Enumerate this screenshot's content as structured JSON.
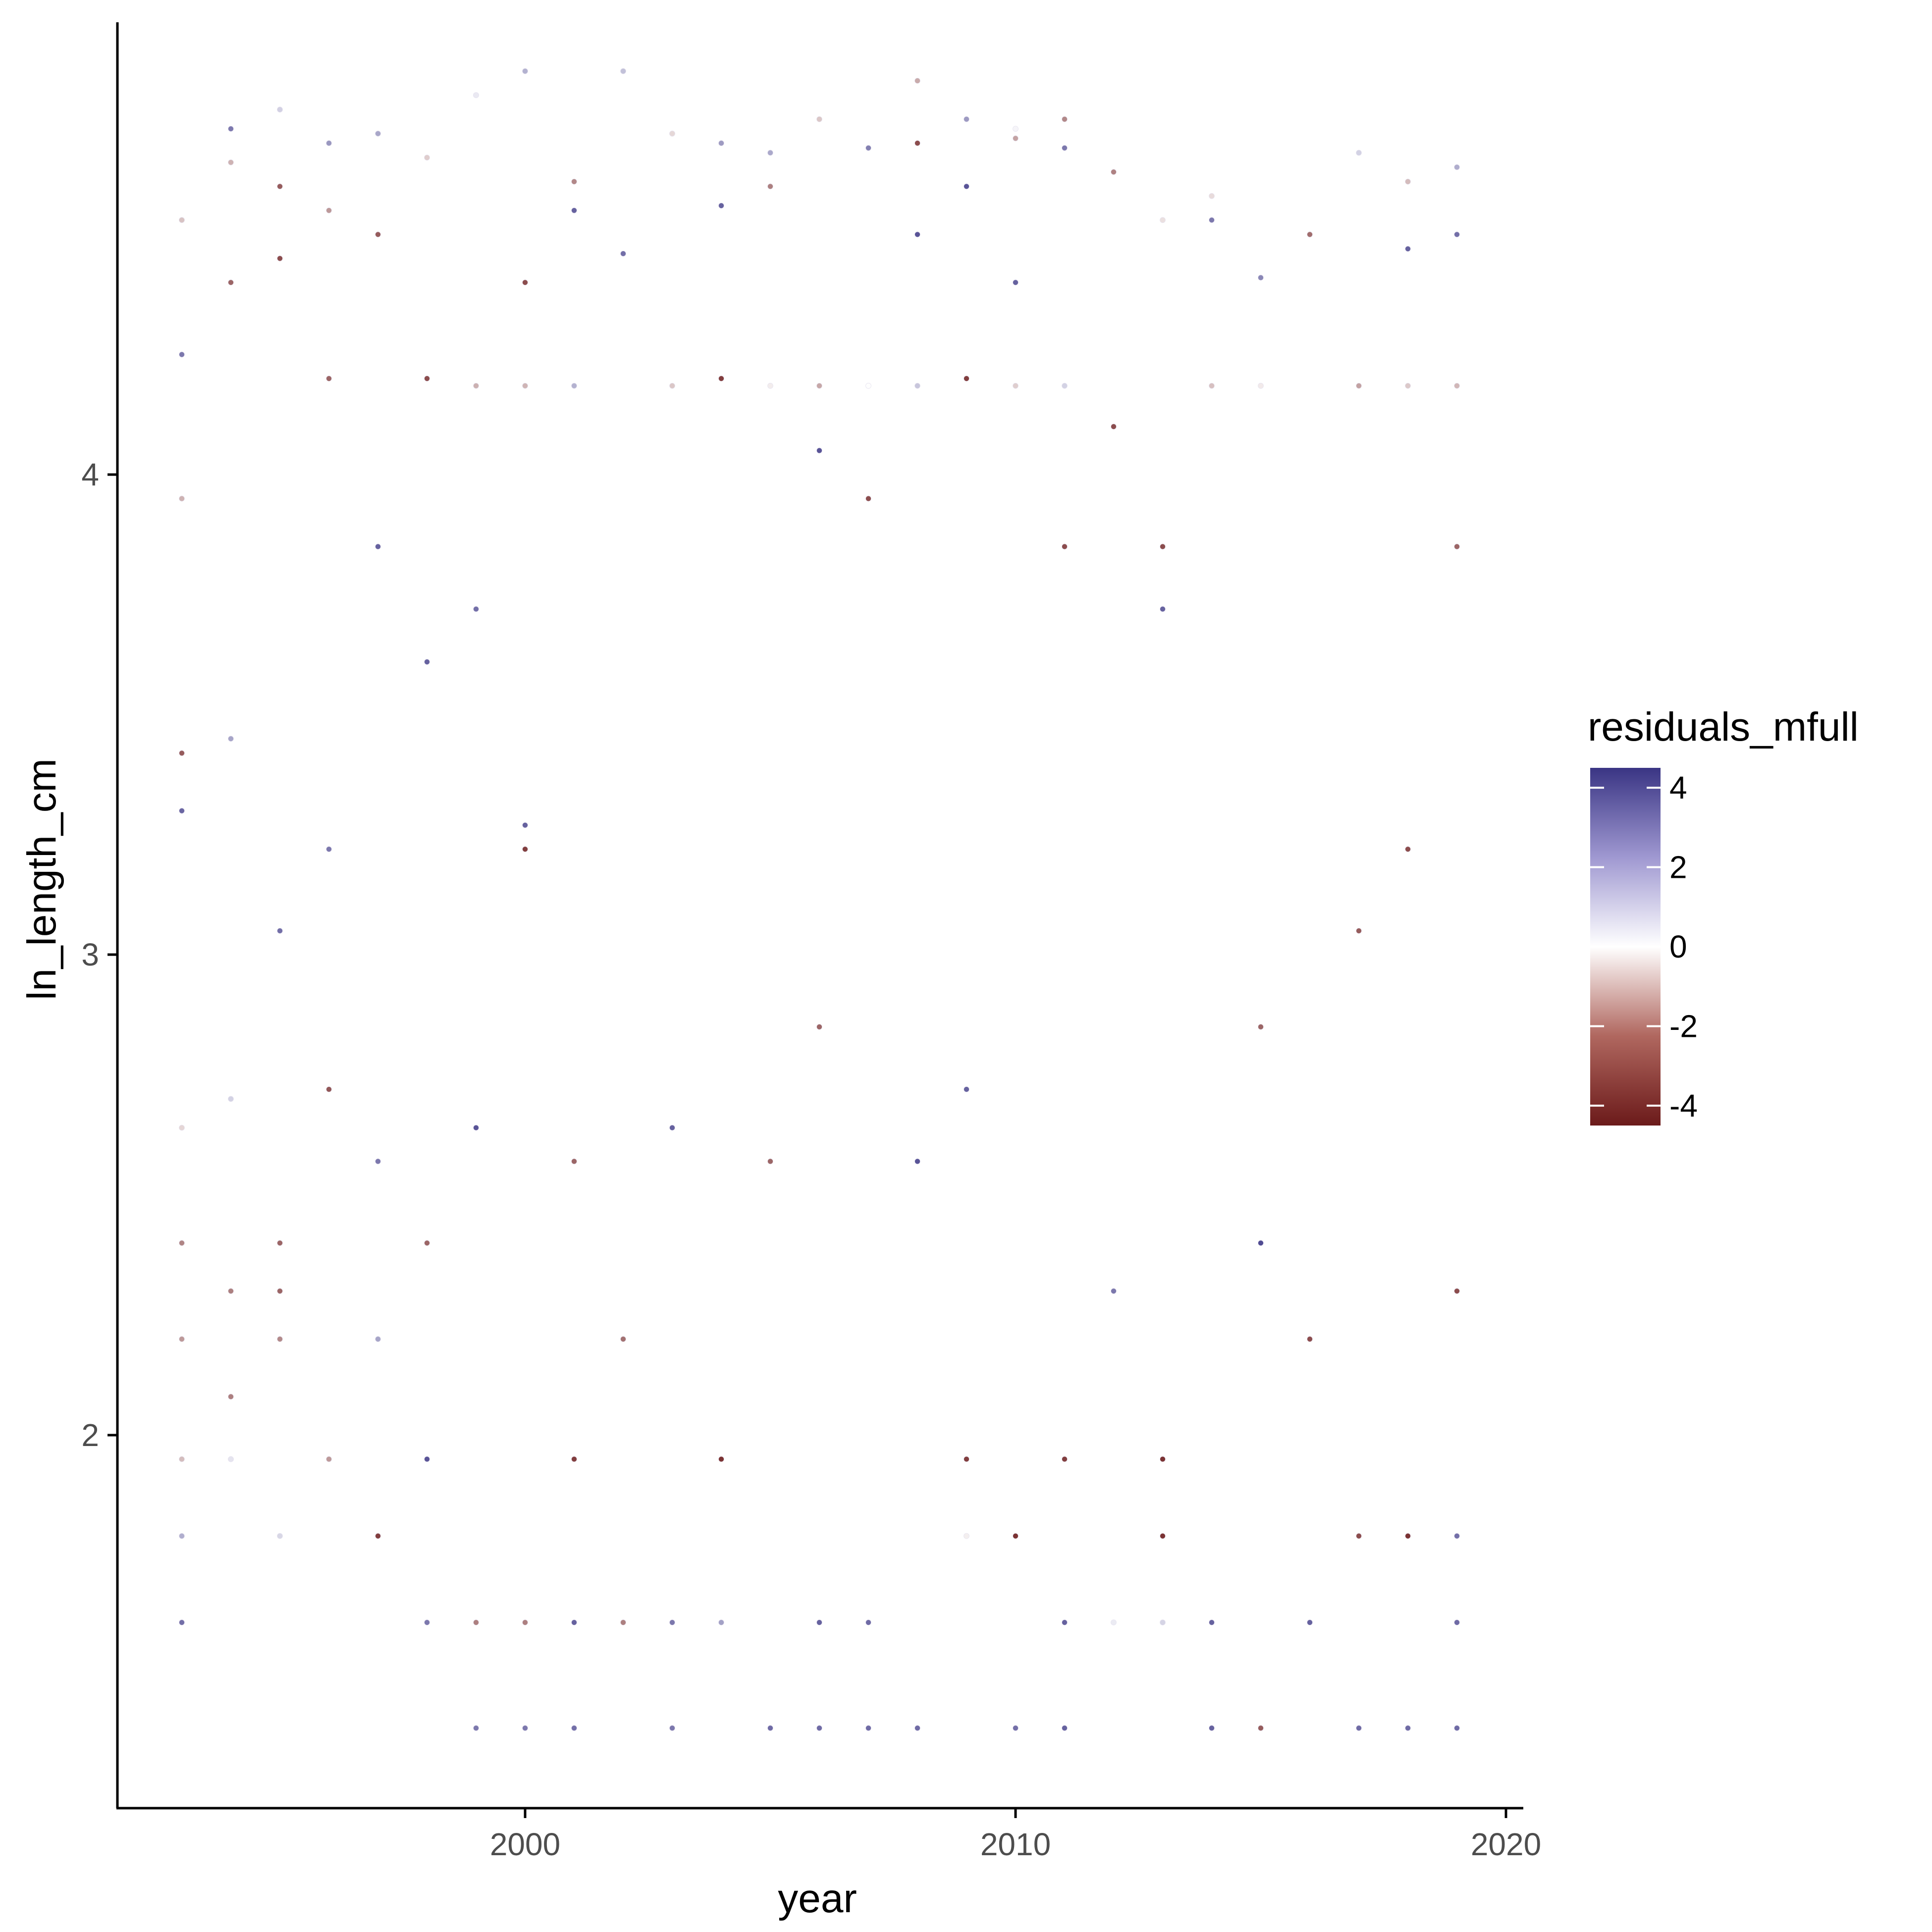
{
  "chart_data": {
    "type": "scatter",
    "title": "",
    "xlabel": "year",
    "ylabel": "ln_length_cm",
    "xlim": [
      1992.2,
      2020.3
    ],
    "ylim": [
      1.2,
      4.93
    ],
    "x_ticks": [
      2000,
      2010,
      2020
    ],
    "x_tick_labels": [
      "2000",
      "2010",
      "2020"
    ],
    "y_ticks": [
      2,
      3,
      4
    ],
    "y_tick_labels": [
      "2",
      "3",
      "4"
    ],
    "grid": false,
    "legend": {
      "title": "residuals_mfull",
      "placement": "right",
      "type": "colorbar",
      "range": [
        -4.5,
        4.5
      ],
      "breaks": [
        4,
        2,
        0,
        -2,
        -4
      ],
      "break_labels": [
        "4",
        "2",
        "0",
        "-2",
        "-4"
      ],
      "colors": {
        "low": "#6b1a1a",
        "mid": "#ffffff",
        "high": "#3a3584"
      }
    },
    "years": [
      1993,
      1994,
      1995,
      1996,
      1997,
      1998,
      1999,
      2000,
      2001,
      2002,
      2003,
      2004,
      2005,
      2006,
      2007,
      2008,
      2009,
      2010,
      2011,
      2012,
      2013,
      2014,
      2015,
      2016,
      2017,
      2018,
      2019
    ],
    "series_by_year": [
      {
        "year": 1993,
        "min": 1.61,
        "max": 4.53,
        "sample": [
          [
            1.61,
            3.2
          ],
          [
            1.79,
            1.8
          ],
          [
            1.95,
            -1.3
          ],
          [
            2.2,
            -2.0
          ],
          [
            2.4,
            -2.4
          ],
          [
            2.64,
            -0.8
          ],
          [
            3.3,
            3.4
          ],
          [
            3.42,
            -3.2
          ],
          [
            3.95,
            -1.5
          ],
          [
            4.25,
            3.0
          ],
          [
            4.53,
            -3.3
          ]
        ]
      },
      {
        "year": 1994,
        "min": 1.95,
        "max": 4.72,
        "sample": [
          [
            1.95,
            0.6
          ],
          [
            2.08,
            -2.5
          ],
          [
            2.3,
            -2.5
          ],
          [
            2.7,
            1.0
          ],
          [
            3.45,
            2.0
          ],
          [
            4.4,
            -3.0
          ],
          [
            4.65,
            -1.5
          ]
        ]
      },
      {
        "year": 1995,
        "min": 1.79,
        "max": 4.76,
        "sample": [
          [
            2.2,
            -2.3
          ],
          [
            2.3,
            -3.0
          ],
          [
            2.4,
            -3.0
          ],
          [
            3.05,
            3.2
          ],
          [
            4.45,
            -3.5
          ],
          [
            4.6,
            -3.2
          ]
        ]
      },
      {
        "year": 1996,
        "min": 1.95,
        "max": 4.69,
        "sample": [
          [
            1.95,
            -2.0
          ],
          [
            2.72,
            -3.3
          ],
          [
            3.22,
            3.0
          ],
          [
            4.2,
            -3.0
          ],
          [
            4.55,
            -2.0
          ]
        ]
      },
      {
        "year": 1997,
        "min": 1.79,
        "max": 4.71,
        "sample": [
          [
            1.79,
            -3.8
          ],
          [
            2.2,
            2.0
          ],
          [
            2.57,
            3.0
          ],
          [
            3.85,
            3.5
          ],
          [
            4.5,
            -3.2
          ],
          [
            4.71,
            -3.6
          ]
        ]
      },
      {
        "year": 1998,
        "min": 1.61,
        "max": 4.66,
        "sample": [
          [
            1.61,
            3.0
          ],
          [
            1.95,
            3.8
          ],
          [
            2.4,
            -3.0
          ],
          [
            3.61,
            3.5
          ],
          [
            4.2,
            -3.5
          ]
        ]
      },
      {
        "year": 1999,
        "min": 1.39,
        "max": 4.79,
        "sample": [
          [
            1.39,
            3.0
          ],
          [
            1.61,
            -2.5
          ],
          [
            2.64,
            3.8
          ],
          [
            3.72,
            3.2
          ],
          [
            4.79,
            -3.5
          ]
        ]
      },
      {
        "year": 2000,
        "min": 1.39,
        "max": 4.84,
        "sample": [
          [
            1.39,
            3.0
          ],
          [
            1.61,
            -2.5
          ],
          [
            3.22,
            -3.8
          ],
          [
            3.27,
            3.5
          ],
          [
            4.4,
            -3.5
          ],
          [
            4.84,
            -1.2
          ]
        ]
      },
      {
        "year": 2001,
        "min": 1.39,
        "max": 4.61,
        "sample": [
          [
            1.39,
            3.2
          ],
          [
            1.61,
            3.5
          ],
          [
            1.95,
            -3.8
          ],
          [
            2.57,
            -3.0
          ],
          [
            4.55,
            3.5
          ]
        ]
      },
      {
        "year": 2002,
        "min": 1.61,
        "max": 4.84,
        "sample": [
          [
            1.61,
            -2.5
          ],
          [
            2.2,
            -2.8
          ],
          [
            4.46,
            3.2
          ],
          [
            4.84,
            -3.0
          ]
        ]
      },
      {
        "year": 2003,
        "min": 1.39,
        "max": 4.71,
        "sample": [
          [
            1.39,
            3.0
          ],
          [
            1.61,
            3.0
          ],
          [
            2.64,
            3.5
          ],
          [
            4.71,
            -3.0
          ]
        ]
      },
      {
        "year": 2004,
        "min": 1.61,
        "max": 4.69,
        "sample": [
          [
            1.95,
            -4.0
          ],
          [
            4.2,
            -3.8
          ],
          [
            4.56,
            3.5
          ]
        ]
      },
      {
        "year": 2005,
        "min": 1.39,
        "max": 4.67,
        "sample": [
          [
            1.39,
            3.3
          ],
          [
            2.57,
            -3.0
          ],
          [
            4.6,
            -2.5
          ]
        ]
      },
      {
        "year": 2006,
        "min": 1.39,
        "max": 4.74,
        "sample": [
          [
            1.39,
            3.3
          ],
          [
            1.61,
            3.5
          ],
          [
            2.85,
            -3.0
          ],
          [
            4.05,
            3.8
          ]
        ]
      },
      {
        "year": 2007,
        "min": 1.39,
        "max": 4.68,
        "sample": [
          [
            1.39,
            3.3
          ],
          [
            1.61,
            3.3
          ],
          [
            3.95,
            -3.5
          ],
          [
            4.68,
            -3.0
          ]
        ]
      },
      {
        "year": 2008,
        "min": 1.39,
        "max": 4.82,
        "sample": [
          [
            1.39,
            3.3
          ],
          [
            2.57,
            3.8
          ],
          [
            4.5,
            3.8
          ],
          [
            4.69,
            -3.5
          ]
        ]
      },
      {
        "year": 2009,
        "min": 1.79,
        "max": 4.74,
        "sample": [
          [
            1.95,
            -3.8
          ],
          [
            2.72,
            3.5
          ],
          [
            4.2,
            -3.8
          ],
          [
            4.6,
            3.8
          ]
        ]
      },
      {
        "year": 2010,
        "min": 1.39,
        "max": 4.72,
        "sample": [
          [
            1.39,
            3.2
          ],
          [
            1.79,
            -4.0
          ],
          [
            4.4,
            3.5
          ],
          [
            4.7,
            -1.8
          ]
        ]
      },
      {
        "year": 2011,
        "min": 1.39,
        "max": 4.74,
        "sample": [
          [
            1.39,
            3.5
          ],
          [
            1.61,
            3.5
          ],
          [
            1.95,
            -3.8
          ],
          [
            3.85,
            -3.5
          ],
          [
            4.68,
            3.0
          ]
        ]
      },
      {
        "year": 2012,
        "min": 1.61,
        "max": 4.63,
        "sample": [
          [
            2.3,
            3.0
          ],
          [
            4.1,
            -3.5
          ]
        ]
      },
      {
        "year": 2013,
        "min": 1.61,
        "max": 4.53,
        "sample": [
          [
            1.79,
            -4.0
          ],
          [
            1.95,
            -4.0
          ],
          [
            3.72,
            3.5
          ],
          [
            3.85,
            -3.5
          ]
        ]
      },
      {
        "year": 2014,
        "min": 1.39,
        "max": 4.58,
        "sample": [
          [
            1.39,
            3.5
          ],
          [
            1.61,
            3.5
          ],
          [
            4.53,
            3.0
          ]
        ]
      },
      {
        "year": 2015,
        "min": 1.39,
        "max": 4.41,
        "sample": [
          [
            1.39,
            -3.2
          ],
          [
            2.4,
            4.0
          ],
          [
            2.85,
            -3.0
          ]
        ]
      },
      {
        "year": 2016,
        "min": 1.61,
        "max": 4.5,
        "sample": [
          [
            1.61,
            3.5
          ],
          [
            2.2,
            -3.5
          ],
          [
            4.5,
            3.5
          ]
        ]
      },
      {
        "year": 2017,
        "min": 1.39,
        "max": 4.67,
        "sample": [
          [
            1.39,
            3.3
          ],
          [
            1.79,
            -3.5
          ],
          [
            3.05,
            -3.2
          ]
        ]
      },
      {
        "year": 2018,
        "min": 1.39,
        "max": 4.61,
        "sample": [
          [
            1.39,
            3.3
          ],
          [
            1.79,
            -4.0
          ],
          [
            3.22,
            -3.5
          ],
          [
            4.47,
            3.5
          ]
        ]
      },
      {
        "year": 2019,
        "min": 1.39,
        "max": 4.64,
        "sample": [
          [
            1.39,
            3.3
          ],
          [
            1.61,
            3.3
          ],
          [
            1.79,
            3.2
          ],
          [
            2.3,
            -3.5
          ],
          [
            3.85,
            -3.0
          ],
          [
            4.5,
            3.2
          ]
        ]
      }
    ]
  }
}
